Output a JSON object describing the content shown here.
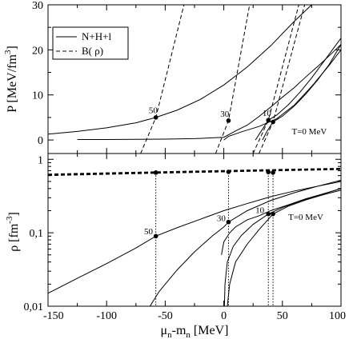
{
  "chart_data": [
    {
      "type": "line",
      "panel": "top",
      "ylabel": "P [MeV/fm",
      "ylabel_sup": "3",
      "ylabel_end": "]",
      "xlim": [
        -150,
        100
      ],
      "ylim": [
        -3,
        30
      ],
      "y_ticks": [
        0,
        10,
        20,
        30
      ],
      "y_tick_labels": [
        "0",
        "10",
        "20",
        "30"
      ],
      "legend": {
        "position": "top-left",
        "entries": [
          {
            "label": "N+H+l",
            "style": "solid"
          },
          {
            "label": "B( ρ)",
            "style": "dashed"
          }
        ]
      },
      "annotations": [
        {
          "text": "50",
          "x": -64,
          "y": 6
        },
        {
          "text": "30",
          "x": -3,
          "y": 5.2
        },
        {
          "text": "10",
          "x": 33,
          "y": 5.3
        },
        {
          "text": "T=0 MeV",
          "x": 58,
          "y": 1.3
        }
      ],
      "points": [
        {
          "x": -58,
          "y": 5.0
        },
        {
          "x": 4,
          "y": 4.3
        },
        {
          "x": 38,
          "y": 4.4
        },
        {
          "x": 42,
          "y": 4.0
        }
      ],
      "series": [
        {
          "style": "solid",
          "x": [
            -150,
            -125,
            -100,
            -75,
            -58,
            -40,
            -20,
            0,
            20,
            40,
            60,
            75
          ],
          "y": [
            1.3,
            1.9,
            2.7,
            3.8,
            5.0,
            6.6,
            9.0,
            12.2,
            16.2,
            20.9,
            26.3,
            30.0
          ]
        },
        {
          "style": "solid",
          "x": [
            -125,
            -100,
            -75,
            -50,
            -25,
            0,
            10,
            20,
            30,
            40,
            50,
            60,
            70,
            80,
            90,
            100
          ],
          "y": [
            0.1,
            0.1,
            0.15,
            0.2,
            0.3,
            0.6,
            2.0,
            3.3,
            5.2,
            7.3,
            9.5,
            11.6,
            14.0,
            16.3,
            18.7,
            21.2
          ]
        },
        {
          "style": "solid",
          "x": [
            0,
            4,
            15,
            30,
            45,
            60,
            75,
            90,
            100
          ],
          "y": [
            0,
            0.8,
            1.8,
            3.0,
            4.7,
            7.7,
            11.9,
            16.6,
            20.0
          ]
        },
        {
          "style": "solid",
          "x": [
            27,
            32,
            38,
            45,
            55,
            65,
            75,
            85,
            100
          ],
          "y": [
            0,
            2.0,
            4.4,
            5.5,
            7.8,
            10.6,
            13.8,
            17.3,
            22.6
          ]
        },
        {
          "style": "solid",
          "x": [
            33,
            37,
            42,
            50,
            60,
            70,
            80,
            90,
            100
          ],
          "y": [
            0,
            2.0,
            4.0,
            5.3,
            7.5,
            10.2,
            13.3,
            16.8,
            21.2
          ]
        },
        {
          "style": "dashed",
          "x": [
            -71,
            -58,
            -34
          ],
          "y": [
            -3,
            5.0,
            30
          ]
        },
        {
          "style": "dashed",
          "x": [
            -7,
            4,
            22
          ],
          "y": [
            -3,
            4.3,
            30
          ]
        },
        {
          "style": "dashed",
          "x": [
            25,
            38,
            64
          ],
          "y": [
            -3,
            4.4,
            30
          ]
        },
        {
          "style": "dashed",
          "x": [
            30,
            42,
            69
          ],
          "y": [
            -3,
            4.0,
            30
          ]
        }
      ]
    },
    {
      "type": "line",
      "panel": "bottom",
      "xlabel": "μ",
      "xlabel_sub1": "n",
      "xlabel_mid": "-m",
      "xlabel_sub2": "n",
      "xlabel_end": " [MeV]",
      "ylabel": "ρ  [fm",
      "ylabel_sup": "-3",
      "ylabel_end": "]",
      "xlim": [
        -150,
        100
      ],
      "ylim": [
        0.01,
        1.2
      ],
      "y_scale": "log",
      "x_ticks": [
        -150,
        -100,
        -50,
        0,
        50,
        100
      ],
      "x_tick_labels": [
        "-150",
        "-100",
        "-50",
        "0",
        "50",
        "100"
      ],
      "y_ticks": [
        0.01,
        0.1,
        1
      ],
      "y_tick_labels": [
        "0,01",
        "0,1",
        "1"
      ],
      "annotations": [
        {
          "text": "50",
          "x": -68,
          "y": 0.095
        },
        {
          "text": "30",
          "x": -6,
          "y": 0.145
        },
        {
          "text": "10",
          "x": 27,
          "y": 0.185
        },
        {
          "text": "T=0 MeV",
          "x": 55,
          "y": 0.15
        }
      ],
      "points": [
        {
          "x": -58,
          "y": 0.09
        },
        {
          "x": 4,
          "y": 0.14
        },
        {
          "x": 38,
          "y": 0.18
        },
        {
          "x": 42,
          "y": 0.18
        },
        {
          "x": -58,
          "y": 0.66
        },
        {
          "x": 4,
          "y": 0.675
        },
        {
          "x": 38,
          "y": 0.67
        },
        {
          "x": 42,
          "y": 0.66
        }
      ],
      "series": [
        {
          "style": "solid",
          "x": [
            -150,
            -125,
            -100,
            -75,
            -58,
            -40,
            -20,
            0,
            20,
            40,
            60,
            80,
            100
          ],
          "y": [
            0.015,
            0.024,
            0.038,
            0.062,
            0.09,
            0.117,
            0.153,
            0.2,
            0.25,
            0.31,
            0.37,
            0.43,
            0.5
          ]
        },
        {
          "style": "solid",
          "x": [
            -63,
            -55,
            -40,
            -25,
            -10,
            0,
            4,
            20,
            40,
            60,
            80,
            100
          ],
          "y": [
            0.01,
            0.016,
            0.031,
            0.055,
            0.09,
            0.12,
            0.14,
            0.2,
            0.275,
            0.35,
            0.43,
            0.52
          ]
        },
        {
          "style": "solid",
          "x": [
            -2,
            0,
            5,
            10,
            20,
            30,
            40,
            55,
            70,
            85,
            100
          ],
          "y": [
            0.05,
            0.075,
            0.1,
            0.12,
            0.15,
            0.17,
            0.2,
            0.24,
            0.29,
            0.34,
            0.4
          ]
        },
        {
          "style": "solid",
          "x": [
            0.5,
            1,
            3,
            8,
            15,
            25,
            38,
            50,
            65,
            80,
            100
          ],
          "y": [
            0.01,
            0.02,
            0.04,
            0.065,
            0.092,
            0.13,
            0.18,
            0.22,
            0.27,
            0.32,
            0.4
          ]
        },
        {
          "style": "solid",
          "x": [
            3,
            5,
            10,
            20,
            30,
            42,
            55,
            70,
            85,
            100
          ],
          "y": [
            0.01,
            0.02,
            0.04,
            0.07,
            0.11,
            0.18,
            0.23,
            0.28,
            0.33,
            0.38
          ]
        },
        {
          "style": "dashed",
          "x": [
            -150,
            -100,
            -50,
            0,
            50,
            100
          ],
          "y": [
            0.61,
            0.635,
            0.66,
            0.685,
            0.71,
            0.735
          ]
        },
        {
          "style": "dashed",
          "x": [
            -150,
            -100,
            -50,
            0,
            50,
            100
          ],
          "y": [
            0.62,
            0.645,
            0.67,
            0.695,
            0.72,
            0.745
          ]
        },
        {
          "style": "dashed",
          "x": [
            -150,
            -100,
            -50,
            0,
            50,
            100
          ],
          "y": [
            0.6,
            0.625,
            0.65,
            0.675,
            0.7,
            0.725
          ]
        },
        {
          "style": "dashed",
          "x": [
            -150,
            -100,
            -50,
            0,
            50,
            100
          ],
          "y": [
            0.63,
            0.655,
            0.68,
            0.705,
            0.73,
            0.755
          ]
        }
      ],
      "verticals": [
        -58,
        4,
        38,
        42
      ]
    }
  ]
}
